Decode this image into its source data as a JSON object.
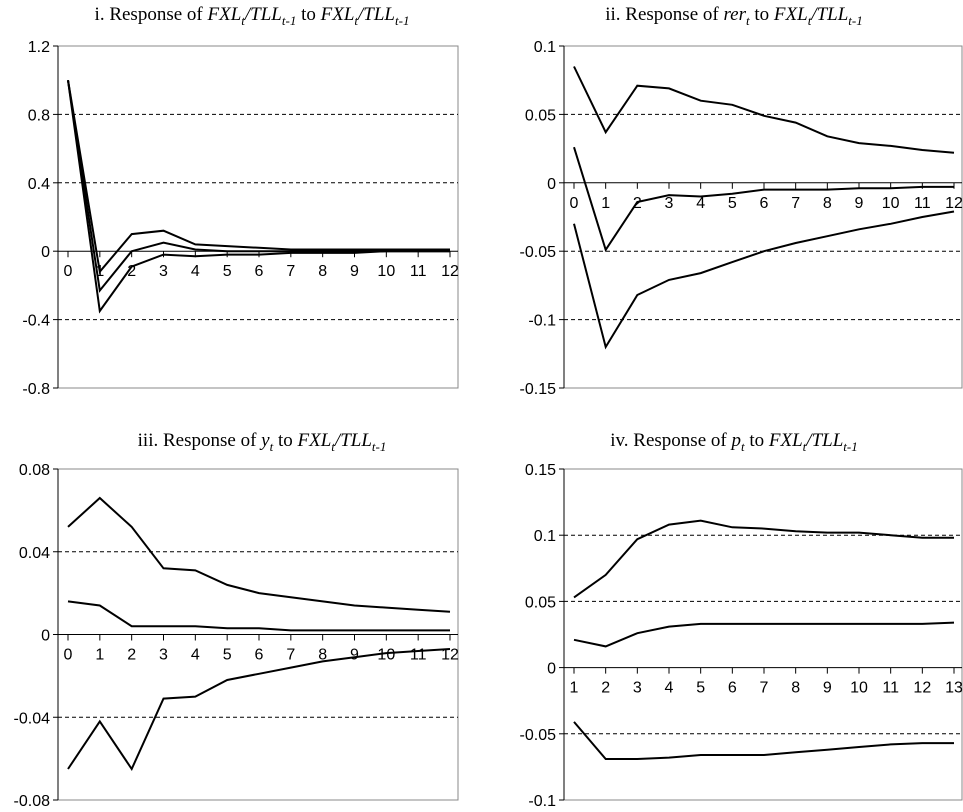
{
  "chart_data": [
    {
      "type": "line",
      "title": {
        "prefix": "i. Response of ",
        "var_main": "FXL",
        "var_sub": "t",
        "slash": "/",
        "tll_main": "TLL",
        "tll_sub": "t-1",
        "mid": " to ",
        "tail_main": "FXL",
        "tail_sub": "t",
        "tail_slash": "/",
        "tail_tll_main": "TLL",
        "tail_tll_sub": "t-1"
      },
      "x": [
        0,
        1,
        2,
        3,
        4,
        5,
        6,
        7,
        8,
        9,
        10,
        11,
        12
      ],
      "xtick_labels": [
        "0",
        "1",
        "2",
        "3",
        "4",
        "5",
        "6",
        "7",
        "8",
        "9",
        "10",
        "11",
        "12"
      ],
      "ylim": [
        -0.8,
        1.2
      ],
      "yticks": [
        -0.8,
        -0.4,
        0,
        0.4,
        0.8,
        1.2
      ],
      "ytick_labels": [
        "-0.8",
        "-0.4",
        "0",
        "0.4",
        "0.8",
        "1.2"
      ],
      "grid_dashed": [
        -0.4,
        0.4,
        0.8
      ],
      "series": [
        {
          "values": [
            1.0,
            -0.12,
            0.1,
            0.12,
            0.04,
            0.03,
            0.02,
            0.01,
            0.01,
            0.01,
            0.01,
            0.01,
            0.01
          ]
        },
        {
          "values": [
            1.0,
            -0.23,
            0.0,
            0.05,
            0.01,
            0.0,
            0.0,
            0.0,
            0.0,
            0.0,
            0.0,
            0.0,
            0.0
          ]
        },
        {
          "values": [
            1.0,
            -0.35,
            -0.09,
            -0.02,
            -0.03,
            -0.02,
            -0.02,
            -0.01,
            -0.01,
            -0.01,
            0.0,
            0.0,
            0.0
          ]
        }
      ]
    },
    {
      "type": "line",
      "title": {
        "prefix": "ii. Response of ",
        "var_main": "rer",
        "var_sub": "t",
        "mid": " to ",
        "tail_main": "FXL",
        "tail_sub": "t",
        "tail_slash": "/",
        "tail_tll_main": "TLL",
        "tail_tll_sub": "t-1"
      },
      "x": [
        0,
        1,
        2,
        3,
        4,
        5,
        6,
        7,
        8,
        9,
        10,
        11,
        12
      ],
      "xtick_labels": [
        "0",
        "1",
        "2",
        "3",
        "4",
        "5",
        "6",
        "7",
        "8",
        "9",
        "10",
        "11",
        "12"
      ],
      "ylim": [
        -0.15,
        0.1
      ],
      "yticks": [
        -0.15,
        -0.1,
        -0.05,
        0,
        0.05,
        0.1
      ],
      "ytick_labels": [
        "-0.15",
        "-0.1",
        "-0.05",
        "0",
        "0.05",
        "0.1"
      ],
      "grid_dashed": [
        -0.1,
        -0.05,
        0.05
      ],
      "series": [
        {
          "values": [
            0.085,
            0.037,
            0.071,
            0.069,
            0.06,
            0.057,
            0.049,
            0.044,
            0.034,
            0.029,
            0.027,
            0.024,
            0.022
          ]
        },
        {
          "values": [
            0.026,
            -0.049,
            -0.014,
            -0.009,
            -0.01,
            -0.008,
            -0.005,
            -0.005,
            -0.005,
            -0.004,
            -0.004,
            -0.003,
            -0.003
          ]
        },
        {
          "values": [
            -0.03,
            -0.12,
            -0.082,
            -0.071,
            -0.066,
            -0.058,
            -0.05,
            -0.044,
            -0.039,
            -0.034,
            -0.03,
            -0.025,
            -0.021
          ]
        }
      ]
    },
    {
      "type": "line",
      "title": {
        "prefix": "iii. Response of ",
        "var_main": "y",
        "var_sub": "t",
        "mid": " to ",
        "tail_main": "FXL",
        "tail_sub": "t",
        "tail_slash": "/",
        "tail_tll_main": "TLL",
        "tail_tll_sub": "t-1"
      },
      "x": [
        0,
        1,
        2,
        3,
        4,
        5,
        6,
        7,
        8,
        9,
        10,
        11,
        12
      ],
      "xtick_labels": [
        "0",
        "1",
        "2",
        "3",
        "4",
        "5",
        "6",
        "7",
        "8",
        "9",
        "10",
        "11",
        "12"
      ],
      "ylim": [
        -0.08,
        0.08
      ],
      "yticks": [
        -0.08,
        -0.04,
        0,
        0.04,
        0.08
      ],
      "ytick_labels": [
        "-0.08",
        "-0.04",
        "0",
        "0.04",
        "0.08"
      ],
      "grid_dashed": [
        -0.04,
        0.04
      ],
      "series": [
        {
          "values": [
            0.052,
            0.066,
            0.052,
            0.032,
            0.031,
            0.024,
            0.02,
            0.018,
            0.016,
            0.014,
            0.013,
            0.012,
            0.011
          ]
        },
        {
          "values": [
            0.016,
            0.014,
            0.004,
            0.004,
            0.004,
            0.003,
            0.003,
            0.002,
            0.002,
            0.002,
            0.002,
            0.002,
            0.002
          ]
        },
        {
          "values": [
            -0.065,
            -0.042,
            -0.065,
            -0.031,
            -0.03,
            -0.022,
            -0.019,
            -0.016,
            -0.013,
            -0.011,
            -0.009,
            -0.008,
            -0.007
          ]
        }
      ]
    },
    {
      "type": "line",
      "title": {
        "prefix": "iv. Response of ",
        "var_main": "p",
        "var_sub": "t",
        "mid": " to ",
        "tail_main": "FXL",
        "tail_sub": "t",
        "tail_slash": "/",
        "tail_tll_main": "TLL",
        "tail_tll_sub": "t-1"
      },
      "x": [
        1,
        2,
        3,
        4,
        5,
        6,
        7,
        8,
        9,
        10,
        11,
        12,
        13
      ],
      "xtick_labels": [
        "1",
        "2",
        "3",
        "4",
        "5",
        "6",
        "7",
        "8",
        "9",
        "10",
        "11",
        "12",
        "13"
      ],
      "ylim": [
        -0.1,
        0.15
      ],
      "yticks": [
        -0.1,
        -0.05,
        0,
        0.05,
        0.1,
        0.15
      ],
      "ytick_labels": [
        "-0.1",
        "-0.05",
        "0",
        "0.05",
        "0.1",
        "0.15"
      ],
      "grid_dashed": [
        -0.05,
        0.05,
        0.1
      ],
      "series": [
        {
          "values": [
            0.053,
            0.07,
            0.097,
            0.108,
            0.111,
            0.106,
            0.105,
            0.103,
            0.102,
            0.102,
            0.1,
            0.098,
            0.098
          ]
        },
        {
          "values": [
            0.021,
            0.016,
            0.026,
            0.031,
            0.033,
            0.033,
            0.033,
            0.033,
            0.033,
            0.033,
            0.033,
            0.033,
            0.034
          ]
        },
        {
          "values": [
            -0.041,
            -0.069,
            -0.069,
            -0.068,
            -0.066,
            -0.066,
            -0.066,
            -0.064,
            -0.062,
            -0.06,
            -0.058,
            -0.057,
            -0.057
          ]
        }
      ]
    }
  ]
}
